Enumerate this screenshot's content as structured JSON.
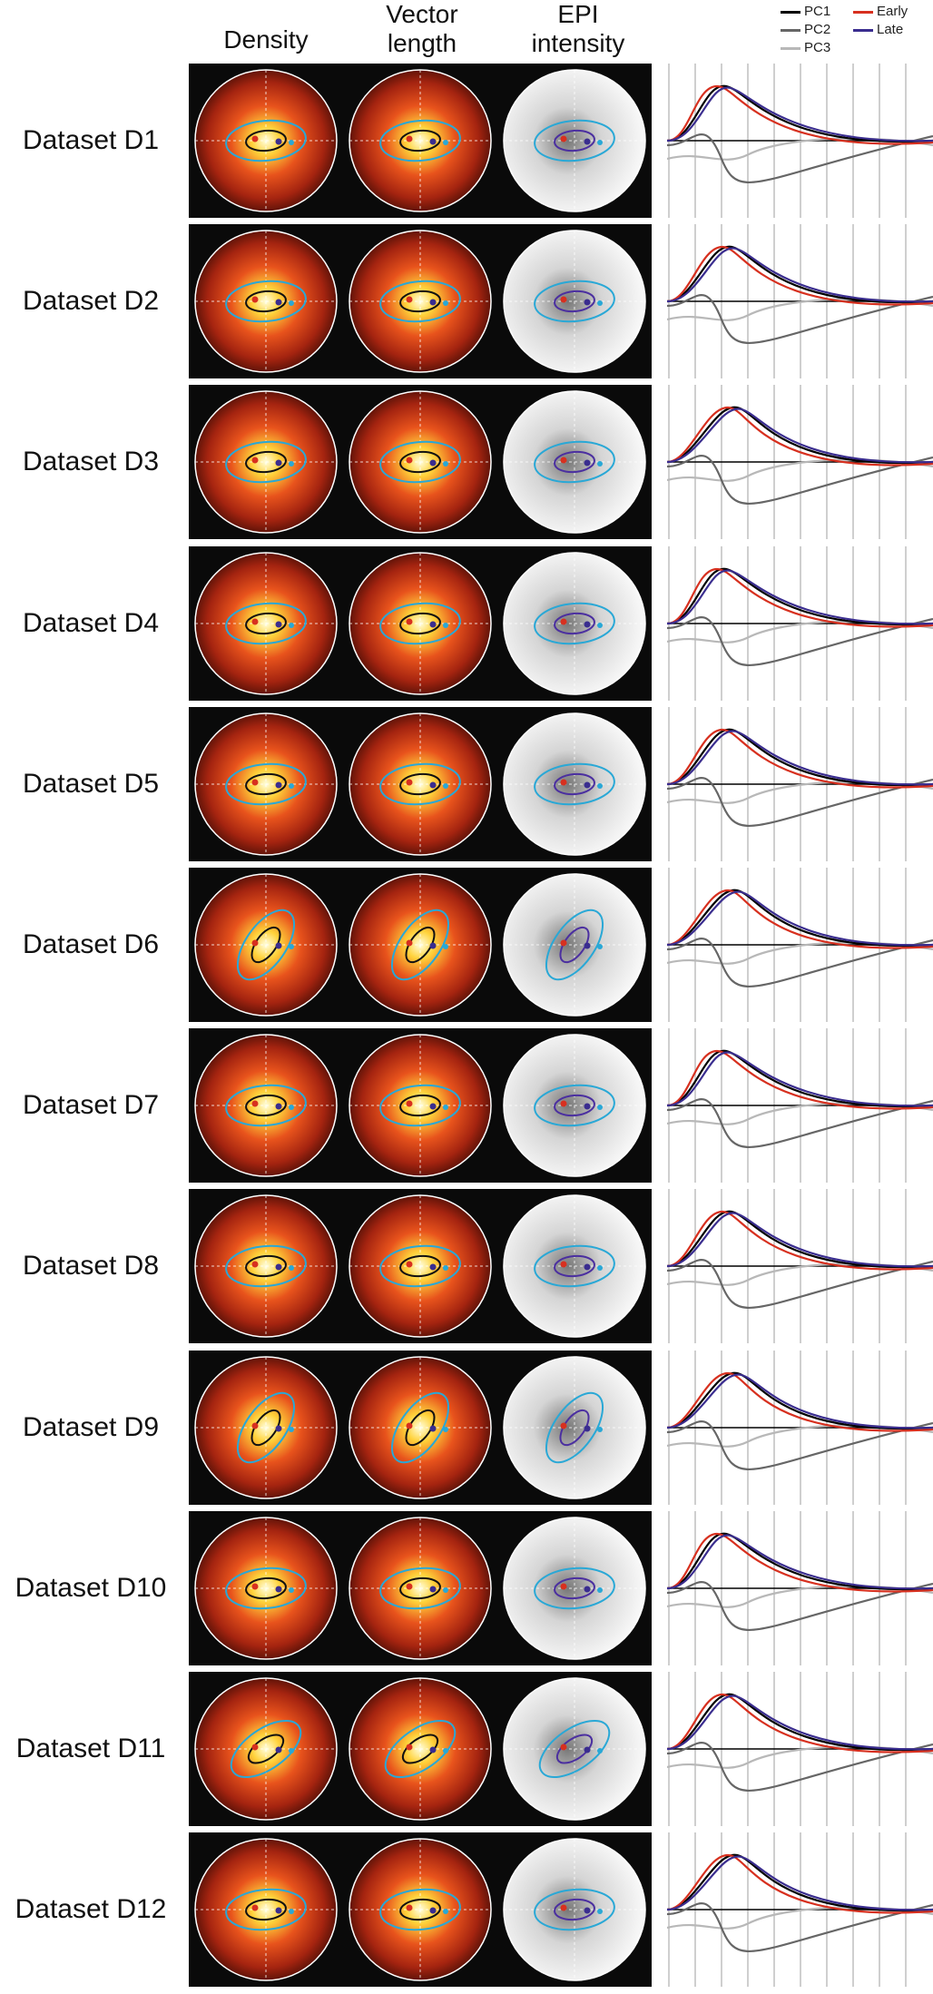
{
  "figure": {
    "columns": [
      {
        "id": "density",
        "label": "Density"
      },
      {
        "id": "vector",
        "label": "Vector\nlength"
      },
      {
        "id": "epi",
        "label": "EPI\nintensity"
      }
    ],
    "legend": [
      {
        "label": "PC1",
        "color": "#000000"
      },
      {
        "label": "PC2",
        "color": "#666666"
      },
      {
        "label": "PC3",
        "color": "#b8b8b8"
      },
      {
        "label": "Early",
        "color": "#d7301f"
      },
      {
        "label": "Late",
        "color": "#3a2d8f"
      }
    ],
    "rows": [
      {
        "label": "Dataset D1"
      },
      {
        "label": "Dataset D2"
      },
      {
        "label": "Dataset D3"
      },
      {
        "label": "Dataset D4"
      },
      {
        "label": "Dataset D5"
      },
      {
        "label": "Dataset D6"
      },
      {
        "label": "Dataset D7"
      },
      {
        "label": "Dataset D8"
      },
      {
        "label": "Dataset D9"
      },
      {
        "label": "Dataset D10"
      },
      {
        "label": "Dataset D11"
      },
      {
        "label": "Dataset D12"
      }
    ]
  }
}
